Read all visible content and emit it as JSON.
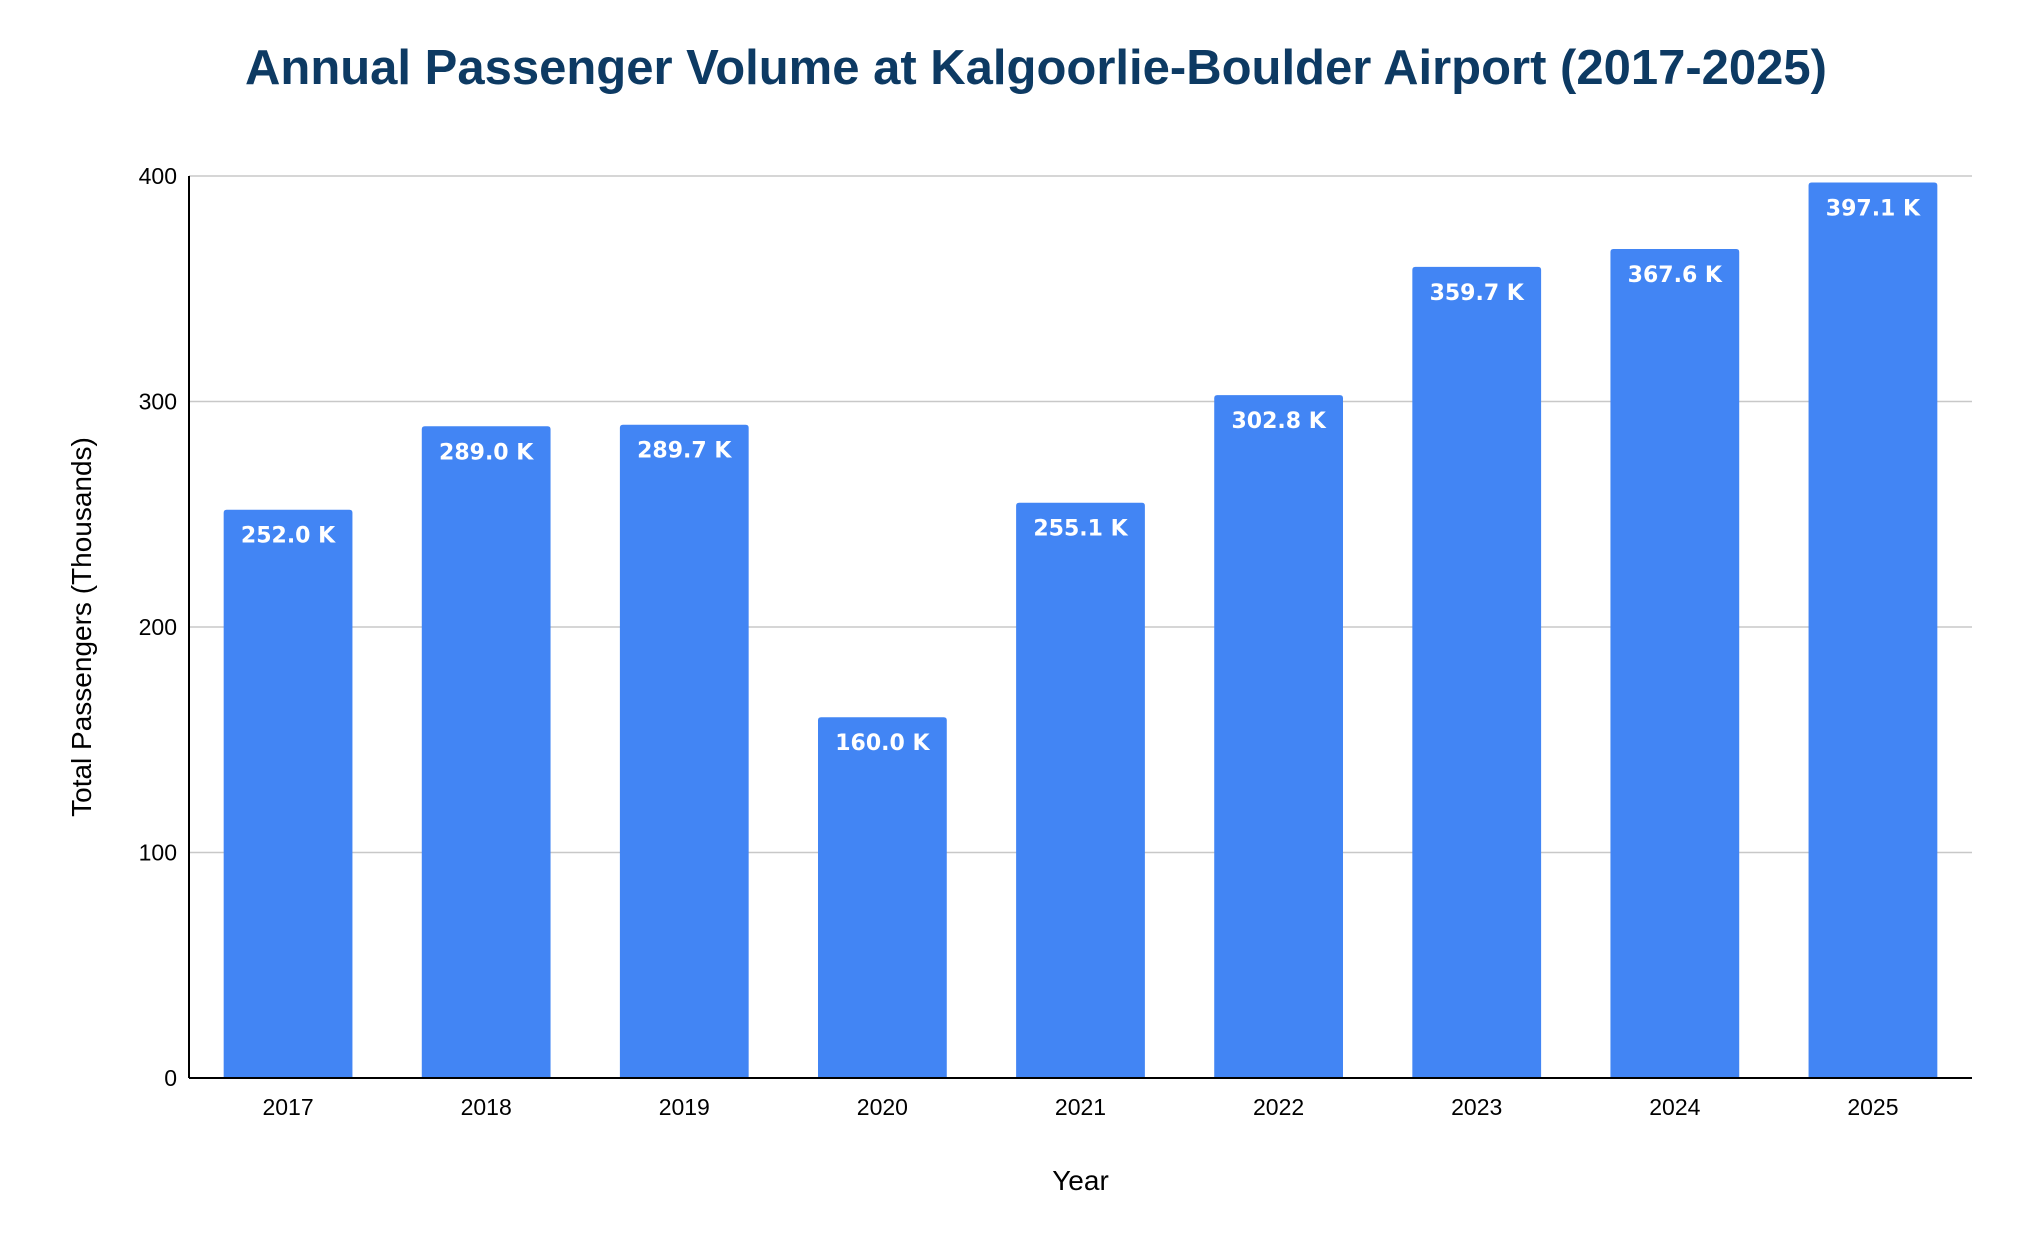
{
  "chart_data": {
    "type": "bar",
    "title": "Annual Passenger Volume at Kalgoorlie-Boulder Airport (2017-2025)",
    "xlabel": "Year",
    "ylabel": "Total Passengers (Thousands)",
    "categories": [
      "2017",
      "2018",
      "2019",
      "2020",
      "2021",
      "2022",
      "2023",
      "2024",
      "2025"
    ],
    "values": [
      252.0,
      289.0,
      289.7,
      160.0,
      255.1,
      302.8,
      359.7,
      367.6,
      397.1
    ],
    "data_labels": [
      "252.0 K",
      "289.0 K",
      "289.7 K",
      "160.0 K",
      "255.1 K",
      "302.8 K",
      "359.7 K",
      "367.6 K",
      "397.1 K"
    ],
    "ylim": [
      0,
      400
    ],
    "yticks": [
      0,
      100,
      200,
      300,
      400
    ],
    "grid": true,
    "legend": "none",
    "bar_color": "#4285f4",
    "title_color": "#0d3a63"
  }
}
